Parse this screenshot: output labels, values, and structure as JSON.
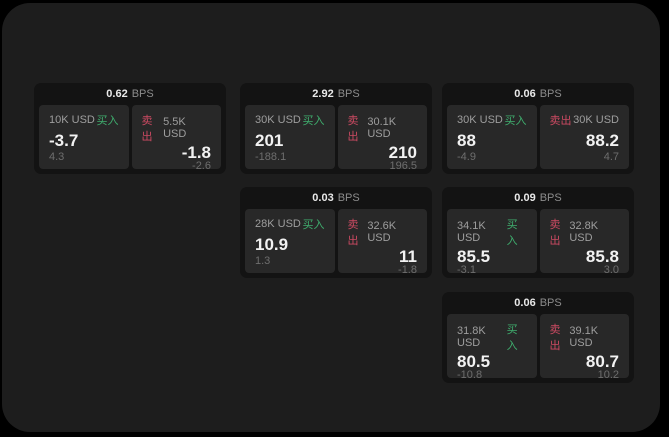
{
  "labels": {
    "bps_suffix": "BPS",
    "buy": "买入",
    "sell": "卖出"
  },
  "colors": {
    "page_background": "#000000",
    "surface_background": "#1d1d1d",
    "card_background": "#131313",
    "tile_background": "#282828",
    "buy_green": "#3fae6e",
    "sell_red": "#cc4a62",
    "primary_text": "#f2f2f2",
    "secondary_text": "#9e9e9e",
    "muted_text": "#6e6e6e"
  },
  "cards": [
    {
      "bps": "0.62",
      "buy": {
        "amount": "10K USD",
        "price": "-3.7",
        "delta": "4.3"
      },
      "sell": {
        "amount": "5.5K USD",
        "price": "-1.8",
        "delta": "-2.6"
      }
    },
    {
      "bps": "2.92",
      "buy": {
        "amount": "30K USD",
        "price": "201",
        "delta": "-188.1"
      },
      "sell": {
        "amount": "30.1K USD",
        "price": "210",
        "delta": "196.5"
      }
    },
    {
      "bps": "0.06",
      "buy": {
        "amount": "30K USD",
        "price": "88",
        "delta": "-4.9"
      },
      "sell": {
        "amount": "30K USD",
        "price": "88.2",
        "delta": "4.7"
      }
    },
    {
      "bps": "0.03",
      "buy": {
        "amount": "28K USD",
        "price": "10.9",
        "delta": "1.3"
      },
      "sell": {
        "amount": "32.6K USD",
        "price": "11",
        "delta": "-1.8"
      }
    },
    {
      "bps": "0.09",
      "buy": {
        "amount": "34.1K USD",
        "price": "85.5",
        "delta": "-3.1"
      },
      "sell": {
        "amount": "32.8K USD",
        "price": "85.8",
        "delta": "3.0"
      }
    },
    {
      "bps": "0.06",
      "buy": {
        "amount": "31.8K USD",
        "price": "80.5",
        "delta": "-10.8"
      },
      "sell": {
        "amount": "39.1K USD",
        "price": "80.7",
        "delta": "10.2"
      }
    }
  ]
}
